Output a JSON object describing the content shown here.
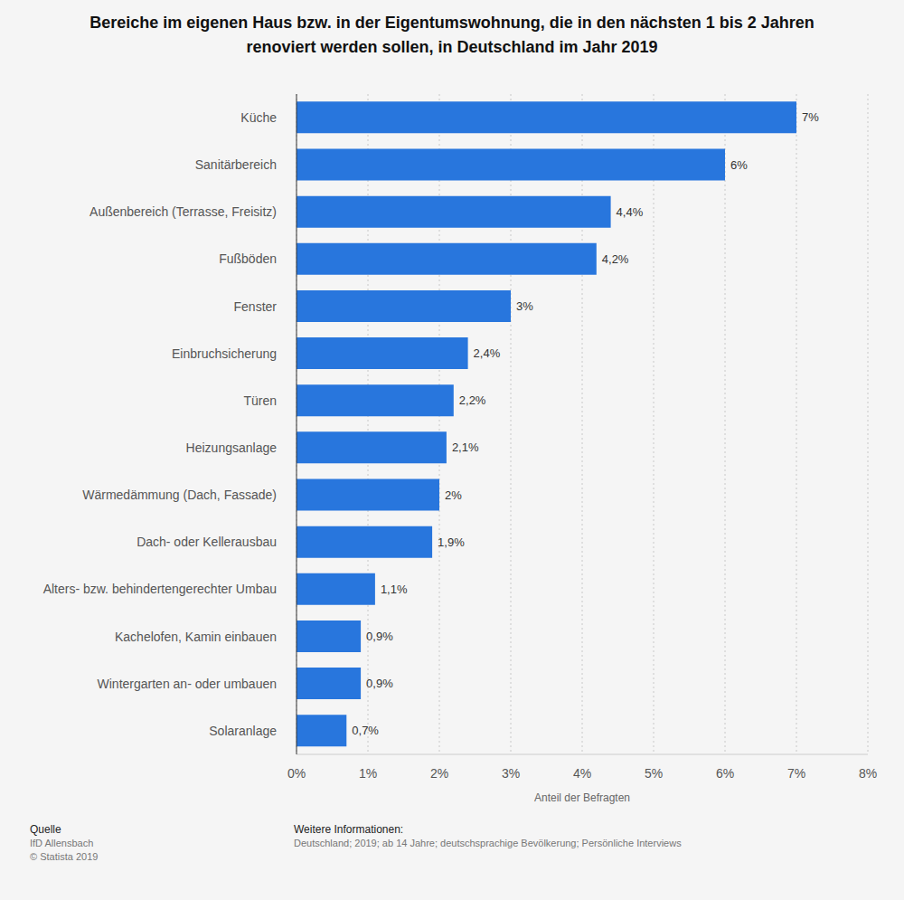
{
  "chart_data": {
    "type": "bar",
    "orientation": "horizontal",
    "title": "Bereiche im eigenen Haus bzw. in der Eigentumswohnung, die in den nächsten 1 bis 2 Jahren renoviert werden sollen, in Deutschland im Jahr 2019",
    "xlabel": "Anteil der Befragten",
    "categories": [
      "Küche",
      "Sanitärbereich",
      "Außenbereich (Terrasse, Freisitz)",
      "Fußböden",
      "Fenster",
      "Einbruchsicherung",
      "Türen",
      "Heizungsanlage",
      "Wärmedämmung (Dach, Fassade)",
      "Dach- oder Kellerausbau",
      "Alters- bzw. behindertengerechter Umbau",
      "Kachelofen, Kamin einbauen",
      "Wintergarten an- oder umbauen",
      "Solaranlage"
    ],
    "values": [
      7,
      6,
      4.4,
      4.2,
      3,
      2.4,
      2.2,
      2.1,
      2,
      1.9,
      1.1,
      0.9,
      0.9,
      0.7
    ],
    "value_labels": [
      "7%",
      "6%",
      "4,4%",
      "4,2%",
      "3%",
      "2,4%",
      "2,2%",
      "2,1%",
      "2%",
      "1,9%",
      "1,1%",
      "0,9%",
      "0,9%",
      "0,7%"
    ],
    "data_labels": true,
    "color": "#2876dd",
    "xlim": [
      0,
      8
    ],
    "xticks": [
      {
        "value": 0,
        "label": "0%"
      },
      {
        "value": 1,
        "label": "1%"
      },
      {
        "value": 2,
        "label": "2%"
      },
      {
        "value": 3,
        "label": "3%"
      },
      {
        "value": 4,
        "label": "4%"
      },
      {
        "value": 5,
        "label": "5%"
      },
      {
        "value": 6,
        "label": "6%"
      },
      {
        "value": 7,
        "label": "7%"
      },
      {
        "value": 8,
        "label": "8%"
      }
    ],
    "grid": true,
    "annotations": [
      "Quelle",
      "IfD Allensbach",
      "© Statista 2019",
      "Weitere Informationen:",
      "Deutschland; 2019; ab 14 Jahre; deutschsprachige Bevölkerung; Persönliche Interviews"
    ]
  }
}
